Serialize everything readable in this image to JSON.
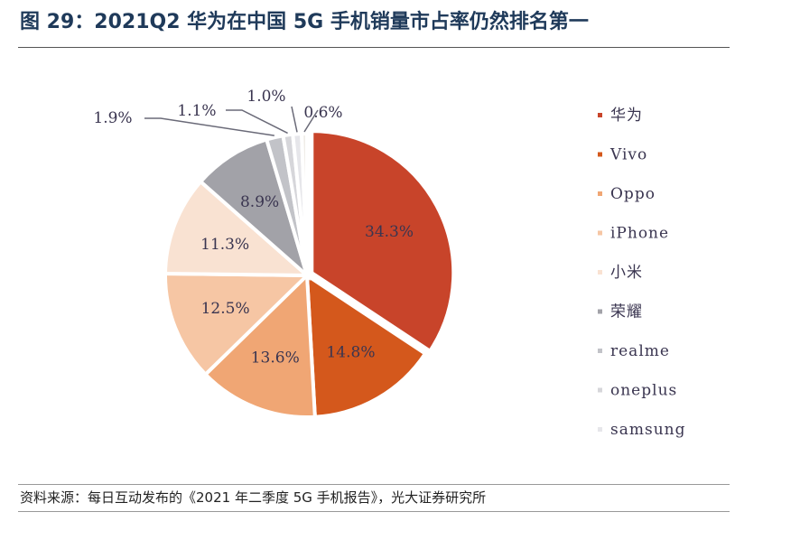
{
  "title": "图 29：2021Q2 华为在中国 5G 手机销量市占率仍然排名第一",
  "source": "资料来源：每日互动发布的《2021 年二季度 5G 手机报告》，光大证券研究所",
  "chart_data": {
    "type": "pie",
    "title": "",
    "legend_position": "right",
    "slices": [
      {
        "name": "华为",
        "value": 34.3,
        "label": "34.3%",
        "color": "#c8442a"
      },
      {
        "name": "Vivo",
        "value": 14.8,
        "label": "14.8%",
        "color": "#d4581c"
      },
      {
        "name": "Oppo",
        "value": 13.6,
        "label": "13.6%",
        "color": "#f0a674"
      },
      {
        "name": "iPhone",
        "value": 12.5,
        "label": "12.5%",
        "color": "#f6c6a4"
      },
      {
        "name": "小米",
        "value": 11.3,
        "label": "11.3%",
        "color": "#f9e2d2"
      },
      {
        "name": "荣耀",
        "value": 8.9,
        "label": "8.9%",
        "color": "#a2a2a8"
      },
      {
        "name": "realme",
        "value": 1.9,
        "label": "1.9%",
        "color": "#c2c3c8"
      },
      {
        "name": "oneplus",
        "value": 1.1,
        "label": "1.1%",
        "color": "#d6d6da"
      },
      {
        "name": "samsung",
        "value": 1.0,
        "label": "1.0%",
        "color": "#e6e6ea"
      },
      {
        "name": "",
        "value": 0.6,
        "label": "0.6%",
        "color": "#f0ede8"
      }
    ]
  }
}
